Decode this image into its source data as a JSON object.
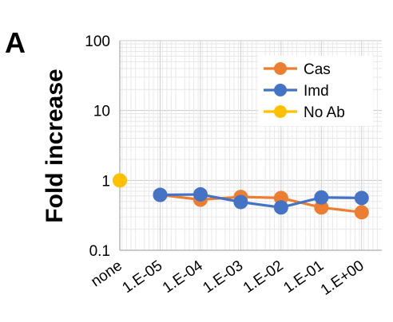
{
  "panel_label": "A",
  "chart_data": {
    "type": "line",
    "ylabel": "Fold increase",
    "yscale": "log",
    "ylim": [
      0.1,
      100
    ],
    "yticks": [
      {
        "value": 100,
        "label": "100"
      },
      {
        "value": 10,
        "label": "10"
      },
      {
        "value": 1,
        "label": "1"
      },
      {
        "value": 0.1,
        "label": "0.1"
      }
    ],
    "categories": [
      "none",
      "1.E-05",
      "1.E-04",
      "1.E-03",
      "1.E-02",
      "1.E-01",
      "1.E+00"
    ],
    "grid": true,
    "legend_position": "top-right",
    "series": [
      {
        "name": "Cas",
        "color": "#ED7D31",
        "values": [
          null,
          0.62,
          0.53,
          0.58,
          0.56,
          0.41,
          0.35
        ]
      },
      {
        "name": "Imd",
        "color": "#4472C4",
        "values": [
          null,
          0.62,
          0.63,
          0.49,
          0.41,
          0.57,
          0.56
        ]
      },
      {
        "name": "No Ab",
        "color": "#FFC000",
        "values": [
          1.0,
          null,
          null,
          null,
          null,
          null,
          null
        ]
      }
    ]
  }
}
